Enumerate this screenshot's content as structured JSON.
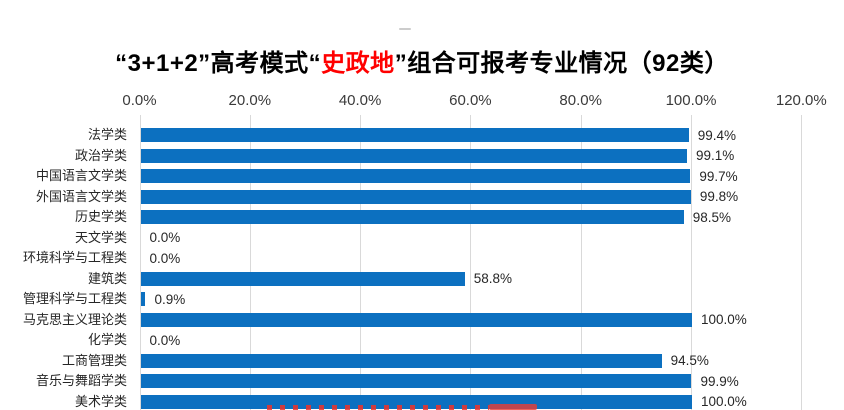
{
  "heading": {
    "prefix": "“3+1+2”高考模式“",
    "highlight": "史政地",
    "suffix": "”组合可报考专业情况（92类）"
  },
  "colors": {
    "bar": "#0C70C0",
    "title_text": "#000000",
    "title_highlight": "#FF0000",
    "axis_text": "#3A3A3A",
    "label_text": "#262626",
    "gridline": "#D9D9D9"
  },
  "artifacts": {
    "top_dash": "small gray dash above title",
    "bottom_red_marks": "cut-off red watermark glyph tops (illegible)"
  },
  "chart_data": {
    "type": "bar",
    "orientation": "horizontal",
    "title": "“3+1+2”高考模式“史政地”组合可报考专业情况（92类）",
    "title_highlight": "史政地",
    "categories": [
      "法学类",
      "政治学类",
      "中国语言文学类",
      "外国语言文学类",
      "历史学类",
      "天文学类",
      "环境科学与工程类",
      "建筑类",
      "管理科学与工程类",
      "马克思主义理论类",
      "化学类",
      "工商管理类",
      "音乐与舞蹈学类",
      "美术学类"
    ],
    "values": [
      99.4,
      99.1,
      99.7,
      99.8,
      98.5,
      0.0,
      0.0,
      58.8,
      0.9,
      100.0,
      0.0,
      94.5,
      99.9,
      100.0
    ],
    "value_labels": [
      "99.4%",
      "99.1%",
      "99.7%",
      "99.8%",
      "98.5%",
      "0.0%",
      "0.0%",
      "58.8%",
      "0.9%",
      "100.0%",
      "0.0%",
      "94.5%",
      "99.9%",
      "100.0%"
    ],
    "x_ticks": [
      "0.0%",
      "20.0%",
      "40.0%",
      "60.0%",
      "80.0%",
      "100.0%",
      "120.0%"
    ],
    "xlabel": "",
    "ylabel": "",
    "xlim": [
      0,
      120
    ],
    "grid": true,
    "legend": "none",
    "gridline_color": "#D9D9D9",
    "bar_color": "#0C70C0",
    "last_row_clipped": "美术学类 row is cut off by the bottom edge of the image"
  }
}
